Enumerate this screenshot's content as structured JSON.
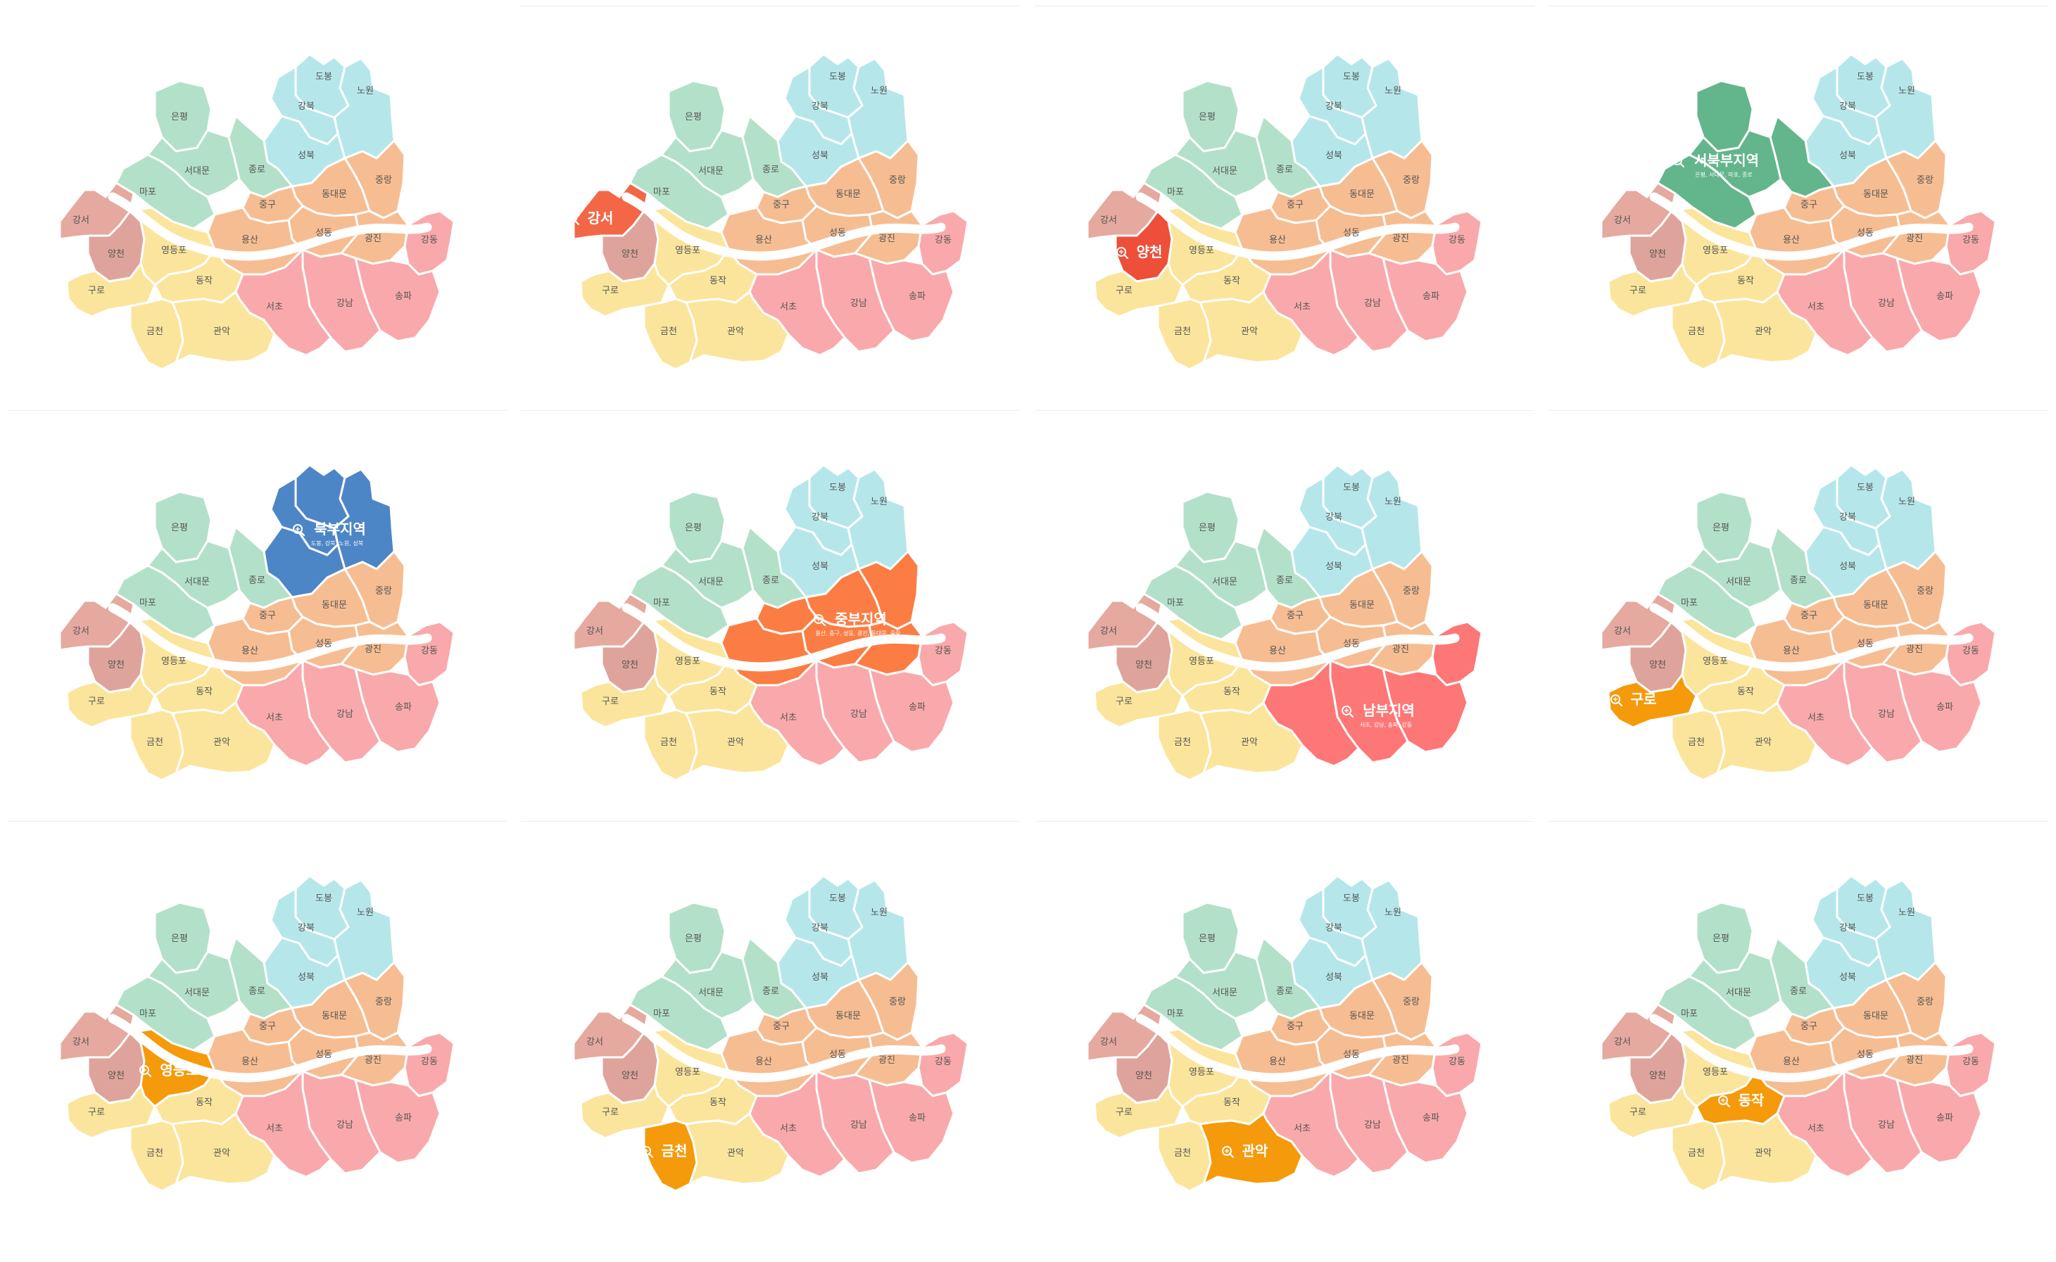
{
  "colors": {
    "seobuk": "#b3e0c9",
    "bukbu": "#b5e7ea",
    "jungbu": "#f6bd92",
    "nambu": "#f9a9ab",
    "nam_w": "#fbe59c",
    "gangseo": "#e5a99f",
    "yangcheon": "#dea49b",
    "hl_orange": "#f59a0b",
    "hl_gangseo": "#f36746",
    "hl_yangcheon": "#ee4f39",
    "hl_seobuk": "#63b58b",
    "hl_bukbu": "#4d86c6",
    "hl_jungbu": "#fb7d44",
    "hl_nambu": "#fd7777"
  },
  "districts": {
    "dobong": "도봉",
    "nowon": "노원",
    "gangbuk": "강북",
    "eunpyeong": "은평",
    "seongbuk": "성북",
    "jongno": "종로",
    "seodaemun": "서대문",
    "jungnang": "중랑",
    "dongdaemun": "동대문",
    "mapo": "마포",
    "junggu": "중구",
    "seongdong": "성동",
    "gwangjin": "광진",
    "yongsan": "용산",
    "gangseo": "강서",
    "yangcheon": "양천",
    "yeongdeungpo": "영등포",
    "gangdong": "강동",
    "guro": "구로",
    "dongjak": "동작",
    "songpa": "송파",
    "gangnam": "강남",
    "seocho": "서초",
    "geumcheon": "금천",
    "gwanak": "관악"
  },
  "maps": [
    {
      "highlight": "none"
    },
    {
      "highlight": "gangseo",
      "label": "강서"
    },
    {
      "highlight": "yangcheon",
      "label": "양천"
    },
    {
      "highlight": "seobuk",
      "label": "서북부지역",
      "sub": "은평, 서대문, 마포, 종로"
    },
    {
      "highlight": "bukbu",
      "label": "북부지역",
      "sub": "도봉, 강북, 노원, 성북"
    },
    {
      "highlight": "jungbu",
      "label": "중부지역",
      "sub": "용산, 중구, 성동, 광진, 동대문, 중랑"
    },
    {
      "highlight": "nambu",
      "label": "남부지역",
      "sub": "서초, 강남, 송파, 강동"
    },
    {
      "highlight": "guro",
      "label": "구로"
    },
    {
      "highlight": "yeongdeungpo",
      "label": "영등포"
    },
    {
      "highlight": "geumcheon",
      "label": "금천"
    },
    {
      "highlight": "gwanak",
      "label": "관악"
    },
    {
      "highlight": "dongjak",
      "label": "동작"
    }
  ]
}
